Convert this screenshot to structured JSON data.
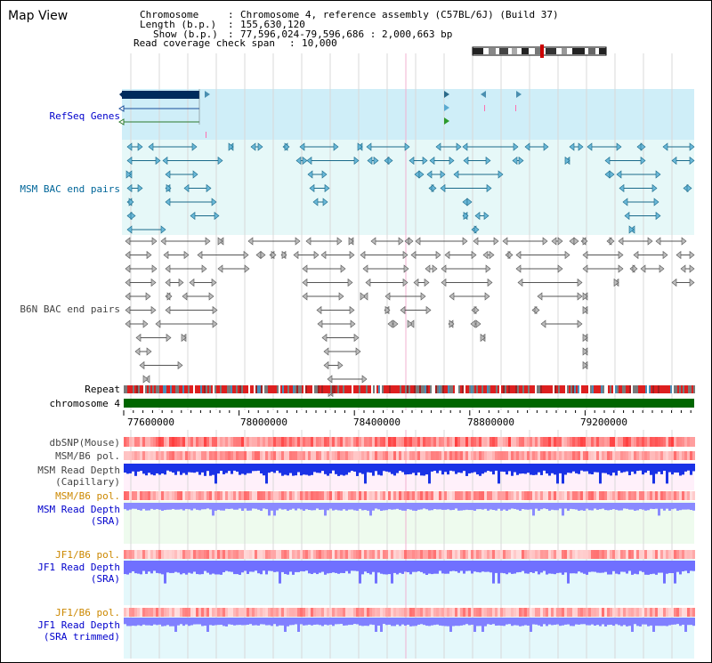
{
  "title": "Map View",
  "info": {
    "chromosome_label": "Chromosome",
    "chromosome_value": "Chromosome 4, reference assembly (C57BL/6J) (Build 37)",
    "length_label": "Length (b.p.)",
    "length_value": "155,630,120",
    "show_label": "Show (b.p.)",
    "show_value": "77,596,024-79,596,686 : 2,000,663 bp",
    "coverage_label": "Read coverage check span",
    "coverage_value": "10,000"
  },
  "tracks": {
    "refseq": "RefSeq Genes",
    "msm_bac": "MSM BAC end pairs",
    "b6n_bac": "B6N BAC end pairs",
    "repeat": "Repeat",
    "chromosome": "chromosome 4",
    "dbsnp": "dbSNP(Mouse)",
    "msm_b6_pol_1": "MSM/B6 pol.",
    "msm_depth_cap": "MSM Read Depth\n(Capillary)",
    "msm_b6_pol_2": "MSM/B6 pol.",
    "msm_depth_sra": "MSM Read Depth\n(SRA)",
    "jf1_b6_pol_1": "JF1/B6 pol.",
    "jf1_depth_sra": "JF1 Read Depth\n(SRA)",
    "jf1_b6_pol_2": "JF1/B6 pol.",
    "jf1_depth_trim": "JF1 Read Depth\n(SRA trimmed)"
  },
  "ruler": {
    "ticks": [
      "77600000",
      "78000000",
      "78400000",
      "78800000",
      "79200000"
    ]
  },
  "colors": {
    "refseq_label": "#0000cc",
    "msm_label": "#006699",
    "b6n_label": "#444444",
    "pol_orange": "#cc8800",
    "depth_blue": "#0000cc",
    "chromosome_green": "#006600"
  }
}
